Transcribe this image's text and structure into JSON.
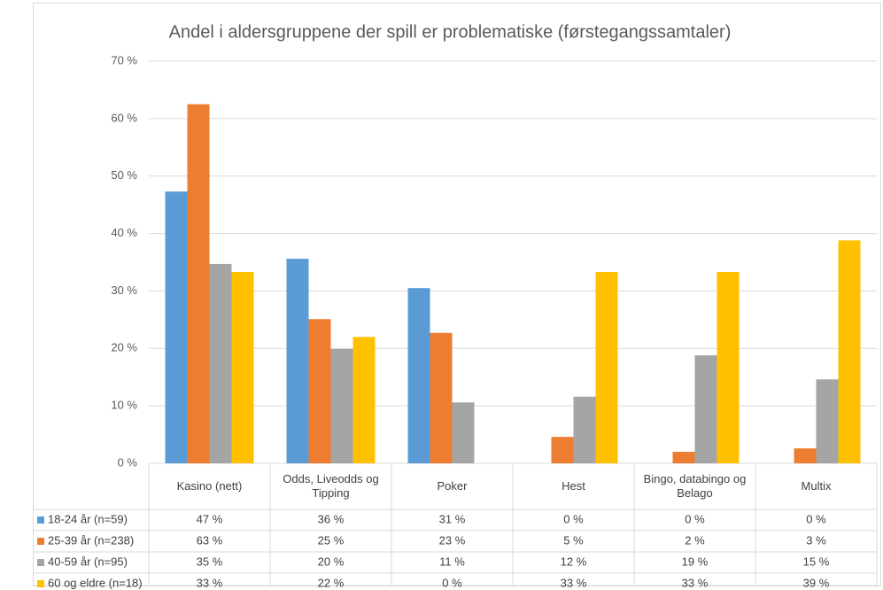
{
  "chart_data": {
    "type": "bar",
    "title": "Andel i aldersgruppene der spill er problematiske (førstegangssamtaler)",
    "categories": [
      "Kasino (nett)",
      "Odds, Liveodds og Tipping",
      "Poker",
      "Hest",
      "Bingo, databingo og Belago",
      "Multix"
    ],
    "series": [
      {
        "name": "18-24 år (n=59)",
        "color": "#5b9bd5",
        "values": [
          47.3,
          35.6,
          30.5,
          0,
          0,
          0
        ],
        "value_labels": [
          "47 %",
          "36 %",
          "31 %",
          "0 %",
          "0 %",
          "0 %"
        ]
      },
      {
        "name": "25-39 år (n=238)",
        "color": "#ed7d31",
        "values": [
          62.5,
          25.1,
          22.7,
          4.6,
          2.0,
          2.6
        ],
        "value_labels": [
          "63 %",
          "25 %",
          "23 %",
          "5 %",
          "2 %",
          "3 %"
        ]
      },
      {
        "name": "40-59 år (n=95)",
        "color": "#a5a5a5",
        "values": [
          34.7,
          19.9,
          10.6,
          11.6,
          18.8,
          14.6
        ],
        "value_labels": [
          "35 %",
          "20 %",
          "11 %",
          "12 %",
          "19 %",
          "15 %"
        ]
      },
      {
        "name": "60 og eldre (n=18)",
        "color": "#ffc000",
        "values": [
          33.3,
          22.0,
          0,
          33.3,
          33.3,
          38.8
        ],
        "value_labels": [
          "33 %",
          "22 %",
          "0 %",
          "33 %",
          "33 %",
          "39 %"
        ]
      }
    ],
    "ylim": [
      0,
      70
    ],
    "yticks": [
      {
        "value": 0,
        "label": "0 %"
      },
      {
        "value": 10,
        "label": "10 %"
      },
      {
        "value": 20,
        "label": "20 %"
      },
      {
        "value": 30,
        "label": "30 %"
      },
      {
        "value": 40,
        "label": "40 %"
      },
      {
        "value": 50,
        "label": "50 %"
      },
      {
        "value": 60,
        "label": "60 %"
      },
      {
        "value": 70,
        "label": "70 %"
      }
    ],
    "grid": true
  }
}
